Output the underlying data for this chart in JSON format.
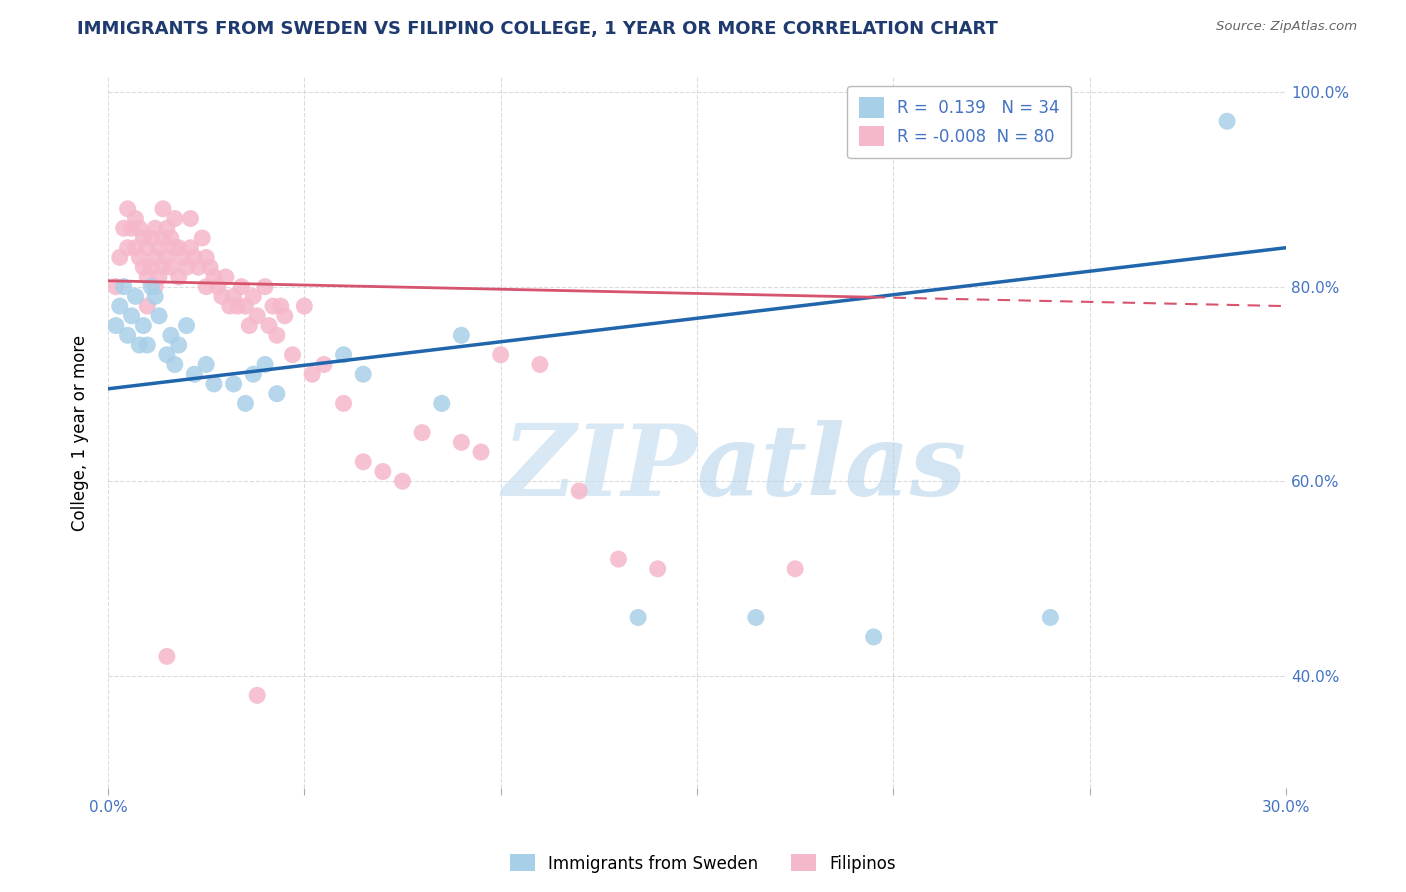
{
  "title": "IMMIGRANTS FROM SWEDEN VS FILIPINO COLLEGE, 1 YEAR OR MORE CORRELATION CHART",
  "source": "Source: ZipAtlas.com",
  "ylabel": "College, 1 year or more",
  "xlim": [
    0.0,
    0.3
  ],
  "ylim": [
    0.285,
    1.015
  ],
  "ytick_values": [
    0.4,
    0.6,
    0.8,
    1.0
  ],
  "ytick_labels": [
    "40.0%",
    "60.0%",
    "80.0%",
    "100.0%"
  ],
  "xtick_values": [
    0.0,
    0.05,
    0.1,
    0.15,
    0.2,
    0.25,
    0.3
  ],
  "xtick_labels": [
    "0.0%",
    "",
    "",
    "",
    "",
    "",
    "30.0%"
  ],
  "R_blue": 0.139,
  "N_blue": 34,
  "R_pink": -0.008,
  "N_pink": 80,
  "blue_dot_color": "#a8cfe8",
  "pink_dot_color": "#f5b8ca",
  "blue_line_color": "#2166ac",
  "pink_line_color": "#d6546e",
  "title_color": "#1f3a6e",
  "axis_label_color": "#4472c4",
  "watermark_color": "#ddeef8",
  "blue_x": [
    0.002,
    0.003,
    0.004,
    0.005,
    0.006,
    0.007,
    0.008,
    0.009,
    0.01,
    0.011,
    0.012,
    0.013,
    0.015,
    0.016,
    0.017,
    0.018,
    0.02,
    0.022,
    0.025,
    0.027,
    0.032,
    0.035,
    0.037,
    0.04,
    0.043,
    0.06,
    0.065,
    0.085,
    0.09,
    0.135,
    0.165,
    0.195,
    0.24,
    0.285
  ],
  "blue_y": [
    0.76,
    0.78,
    0.8,
    0.75,
    0.77,
    0.79,
    0.74,
    0.76,
    0.74,
    0.8,
    0.79,
    0.77,
    0.73,
    0.75,
    0.72,
    0.74,
    0.76,
    0.71,
    0.72,
    0.7,
    0.7,
    0.68,
    0.71,
    0.72,
    0.69,
    0.73,
    0.71,
    0.68,
    0.75,
    0.46,
    0.46,
    0.44,
    0.46,
    0.97
  ],
  "pink_x": [
    0.002,
    0.003,
    0.004,
    0.005,
    0.005,
    0.006,
    0.007,
    0.007,
    0.008,
    0.008,
    0.009,
    0.009,
    0.01,
    0.01,
    0.01,
    0.011,
    0.011,
    0.012,
    0.012,
    0.012,
    0.013,
    0.013,
    0.014,
    0.014,
    0.014,
    0.015,
    0.015,
    0.016,
    0.016,
    0.017,
    0.017,
    0.018,
    0.018,
    0.019,
    0.02,
    0.021,
    0.021,
    0.022,
    0.023,
    0.024,
    0.025,
    0.025,
    0.026,
    0.027,
    0.028,
    0.029,
    0.03,
    0.031,
    0.032,
    0.033,
    0.034,
    0.035,
    0.036,
    0.037,
    0.038,
    0.04,
    0.041,
    0.042,
    0.043,
    0.044,
    0.045,
    0.047,
    0.05,
    0.052,
    0.055,
    0.06,
    0.065,
    0.07,
    0.075,
    0.08,
    0.09,
    0.095,
    0.1,
    0.11,
    0.12,
    0.13,
    0.14,
    0.175,
    0.015,
    0.038
  ],
  "pink_y": [
    0.8,
    0.83,
    0.86,
    0.88,
    0.84,
    0.86,
    0.84,
    0.87,
    0.83,
    0.86,
    0.82,
    0.85,
    0.84,
    0.81,
    0.78,
    0.85,
    0.82,
    0.86,
    0.83,
    0.8,
    0.84,
    0.81,
    0.88,
    0.85,
    0.82,
    0.86,
    0.83,
    0.85,
    0.82,
    0.87,
    0.84,
    0.84,
    0.81,
    0.83,
    0.82,
    0.87,
    0.84,
    0.83,
    0.82,
    0.85,
    0.83,
    0.8,
    0.82,
    0.81,
    0.8,
    0.79,
    0.81,
    0.78,
    0.79,
    0.78,
    0.8,
    0.78,
    0.76,
    0.79,
    0.77,
    0.8,
    0.76,
    0.78,
    0.75,
    0.78,
    0.77,
    0.73,
    0.78,
    0.71,
    0.72,
    0.68,
    0.62,
    0.61,
    0.6,
    0.65,
    0.64,
    0.63,
    0.73,
    0.72,
    0.59,
    0.52,
    0.51,
    0.51,
    0.42,
    0.38
  ]
}
